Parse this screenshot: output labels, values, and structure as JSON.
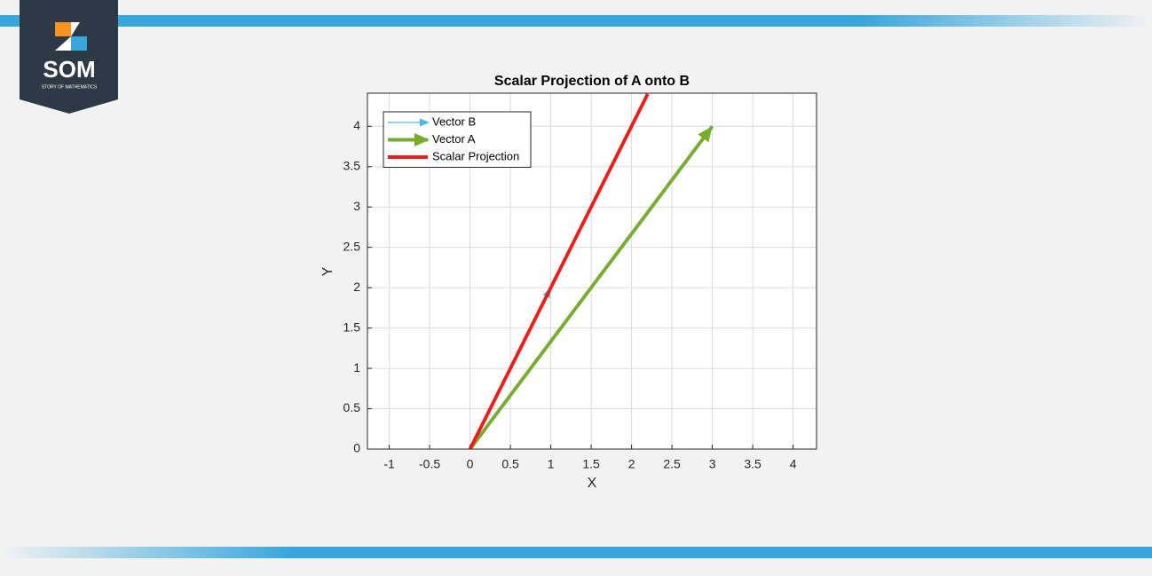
{
  "logo": {
    "text": "SOM",
    "tagline": "STORY OF MATHEMATICS"
  },
  "chart_data": {
    "type": "vector",
    "title": "Scalar Projection of A onto B",
    "x_label": "X",
    "y_label": "Y",
    "xlim": [
      -1.27,
      4.29
    ],
    "ylim": [
      0,
      4.41
    ],
    "xticks": [
      -1,
      -0.5,
      0,
      0.5,
      1,
      1.5,
      2,
      2.5,
      3,
      3.5,
      4
    ],
    "yticks": [
      0,
      0.5,
      1,
      1.5,
      2,
      2.5,
      3,
      3.5,
      4
    ],
    "grid": true,
    "legend": "top-left",
    "series": [
      {
        "name": "Vector B",
        "color": "#4db8e8",
        "width": 1,
        "arrow": true,
        "x": [
          0,
          1
        ],
        "values": [
          0,
          2
        ]
      },
      {
        "name": "Vector A",
        "color": "#77ac30",
        "width": 3,
        "arrow": true,
        "x": [
          0,
          3
        ],
        "values": [
          0,
          4
        ]
      },
      {
        "name": "Scalar Projection",
        "color": "#ee1c1c",
        "width": 3,
        "arrow": false,
        "x": [
          0,
          2.2
        ],
        "values": [
          0,
          4.4
        ]
      }
    ]
  }
}
